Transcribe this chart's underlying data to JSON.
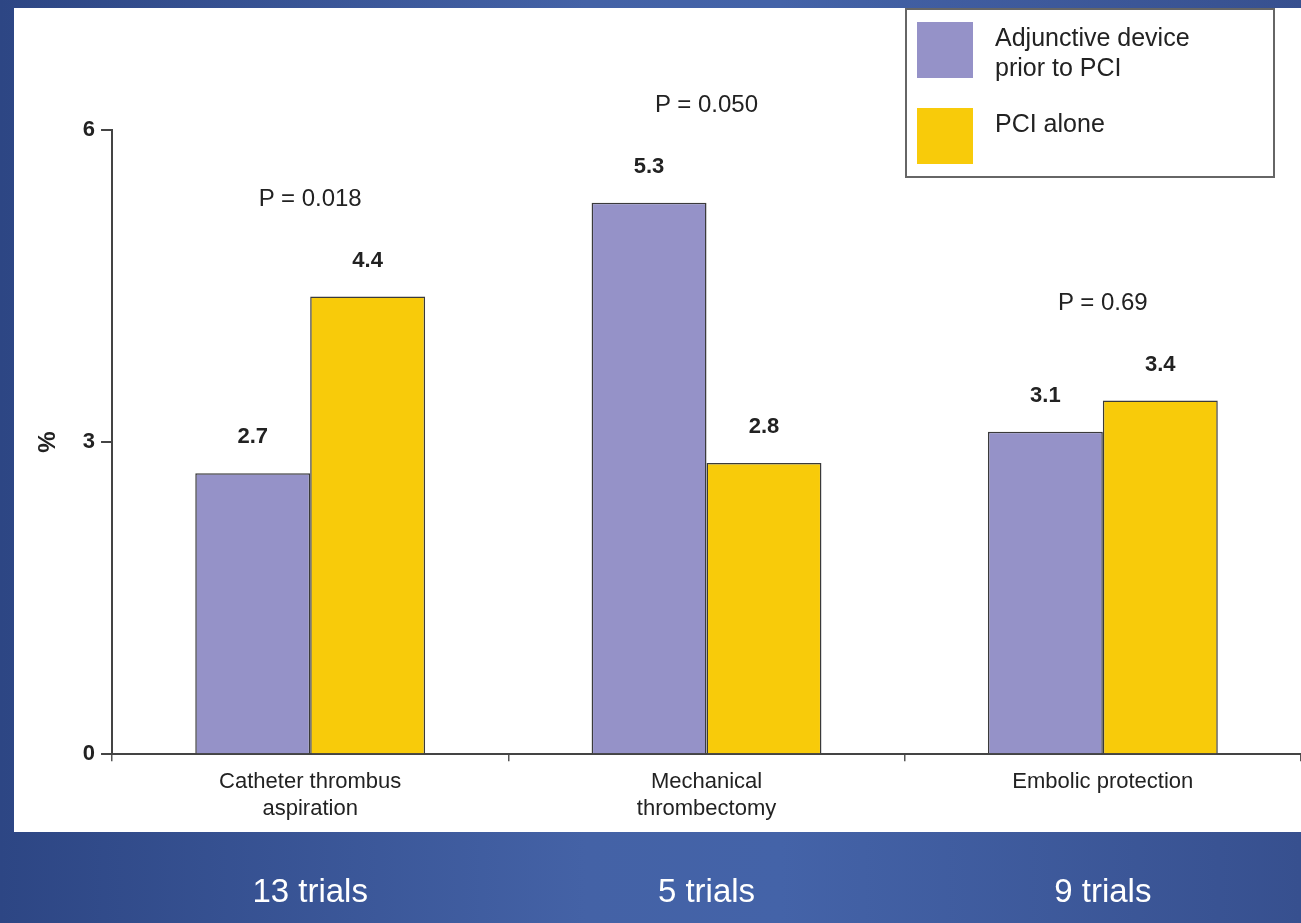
{
  "chart_data": {
    "type": "bar",
    "categories": [
      "Catheter thrombus aspiration",
      "Mechanical thrombectomy",
      "Embolic protection"
    ],
    "series": [
      {
        "name": "Adjunctive device prior to PCI",
        "color": "#9592c8",
        "values": [
          2.7,
          5.3,
          3.1
        ]
      },
      {
        "name": "PCI alone",
        "color": "#f8cb0a",
        "values": [
          4.4,
          2.8,
          3.4
        ]
      }
    ],
    "ylabel": "%",
    "ylim": [
      0,
      6
    ],
    "yticks": [
      0,
      3,
      6
    ],
    "data_labels": true,
    "legend": "top right",
    "annotations": [
      "P = 0.018",
      "P = 0.050",
      "P = 0.69",
      "13 trials",
      "5 trials",
      "9 trials"
    ]
  }
}
